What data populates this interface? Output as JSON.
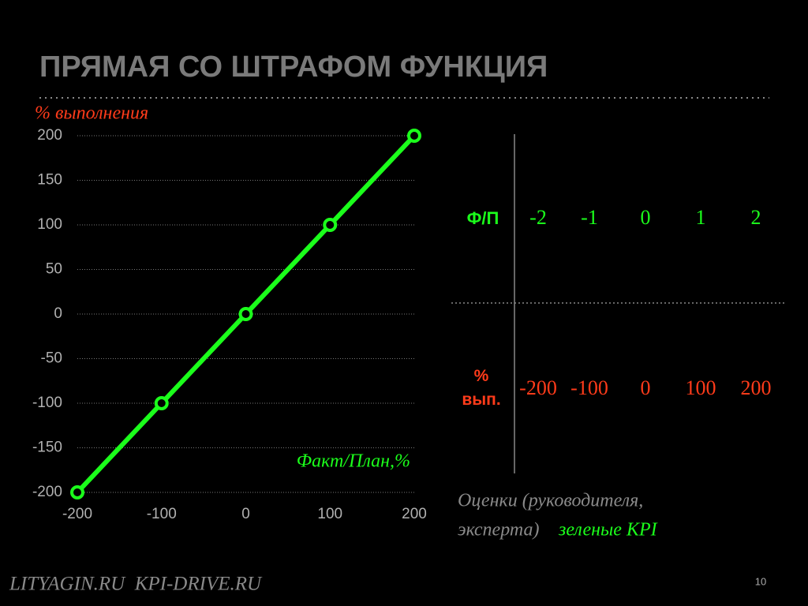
{
  "title": "ПРЯМАЯ СО ШТРАФОМ ФУНКЦИЯ",
  "chart_data": {
    "type": "line",
    "y_label": "% выполнения",
    "x_label": "Факт/План,%",
    "x": [
      -200,
      -100,
      0,
      100,
      200
    ],
    "values": [
      -200,
      -100,
      0,
      100,
      200
    ],
    "color": "#1bff1b",
    "xlim": [
      -200,
      200
    ],
    "ylim": [
      -200,
      200
    ],
    "xticks": [
      -200,
      -100,
      0,
      100,
      200
    ],
    "yticks": [
      -200,
      -150,
      -100,
      -50,
      0,
      50,
      100,
      150,
      200
    ],
    "grid": true
  },
  "table": {
    "rows": [
      [
        "Ф/П",
        -2,
        -1,
        0,
        1,
        2
      ],
      [
        "% вып.",
        -200,
        -100,
        0,
        100,
        200
      ]
    ]
  },
  "note": {
    "text": [
      "Оценки (руководителя,",
      "эксперта)"
    ],
    "highlight": "зеленые KPI"
  },
  "footer": "LITYAGIN.RU  KPI-DRIVE.RU",
  "page_number": 10
}
